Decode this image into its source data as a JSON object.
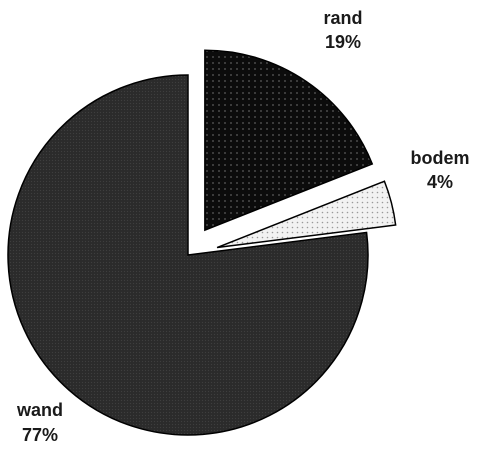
{
  "chart_data": {
    "type": "pie",
    "title": "",
    "slices": [
      {
        "label": "rand",
        "value": 19,
        "value_label": "19%",
        "exploded": true,
        "color": "#111111",
        "pattern": "dotted-dark"
      },
      {
        "label": "bodem",
        "value": 4,
        "value_label": "4%",
        "exploded": true,
        "color": "#f0f0f0",
        "pattern": "dotted-light"
      },
      {
        "label": "wand",
        "value": 77,
        "value_label": "77%",
        "exploded": false,
        "color": "#2a2a2a",
        "pattern": "fine-dark"
      }
    ],
    "legend": "none",
    "label_style": "outside, label above percentage"
  }
}
